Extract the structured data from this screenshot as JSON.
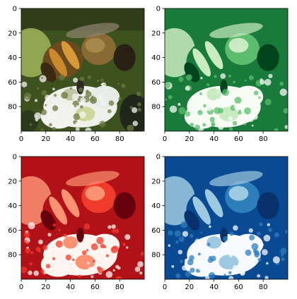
{
  "figure": {
    "panels": [
      {
        "id": "original",
        "colormap": "rgb",
        "xticks": [
          "0",
          "20",
          "40",
          "60",
          "80"
        ],
        "yticks": [
          "0",
          "20",
          "40",
          "60",
          "80"
        ]
      },
      {
        "id": "green",
        "colormap": "Greens_r",
        "colors": [
          "#00441b",
          "#1a7a3c",
          "#5cbd6e",
          "#c9ebc1",
          "#f7fcf5"
        ],
        "xticks": [
          "0",
          "20",
          "40",
          "60",
          "80"
        ],
        "yticks": [
          "0",
          "20",
          "40",
          "60",
          "80"
        ]
      },
      {
        "id": "red",
        "colormap": "Reds_r",
        "colors": [
          "#67000d",
          "#b11218",
          "#ef3b2c",
          "#fc9272",
          "#fff5f0"
        ],
        "xticks": [
          "0",
          "20",
          "40",
          "60",
          "80"
        ],
        "yticks": [
          "0",
          "20",
          "40",
          "60",
          "80"
        ]
      },
      {
        "id": "blue",
        "colormap": "Blues_r",
        "colors": [
          "#08306b",
          "#0a4a92",
          "#2f7ebc",
          "#9ecae1",
          "#f7fbff"
        ],
        "xticks": [
          "0",
          "20",
          "40",
          "60",
          "80"
        ],
        "yticks": [
          "0",
          "20",
          "40",
          "60",
          "80"
        ]
      }
    ]
  },
  "chart_data": [
    {
      "type": "heatmap",
      "subject": "bee on white flower, full-colour image",
      "xlim": [
        0,
        100
      ],
      "ylim": [
        100,
        0
      ],
      "xticks": [
        0,
        20,
        40,
        60,
        80
      ],
      "yticks": [
        0,
        20,
        40,
        60,
        80
      ],
      "grid": false
    },
    {
      "type": "heatmap",
      "subject": "same image, single channel in reversed green colormap",
      "xlim": [
        0,
        100
      ],
      "ylim": [
        100,
        0
      ],
      "xticks": [
        0,
        20,
        40,
        60,
        80
      ],
      "yticks": [
        0,
        20,
        40,
        60,
        80
      ],
      "grid": false
    },
    {
      "type": "heatmap",
      "subject": "same image, single channel in reversed red colormap",
      "xlim": [
        0,
        100
      ],
      "ylim": [
        100,
        0
      ],
      "xticks": [
        0,
        20,
        40,
        60,
        80
      ],
      "yticks": [
        0,
        20,
        40,
        60,
        80
      ],
      "grid": false
    },
    {
      "type": "heatmap",
      "subject": "same image, single channel in reversed blue colormap",
      "xlim": [
        0,
        100
      ],
      "ylim": [
        100,
        0
      ],
      "xticks": [
        0,
        20,
        40,
        60,
        80
      ],
      "yticks": [
        0,
        20,
        40,
        60,
        80
      ],
      "grid": false
    }
  ]
}
